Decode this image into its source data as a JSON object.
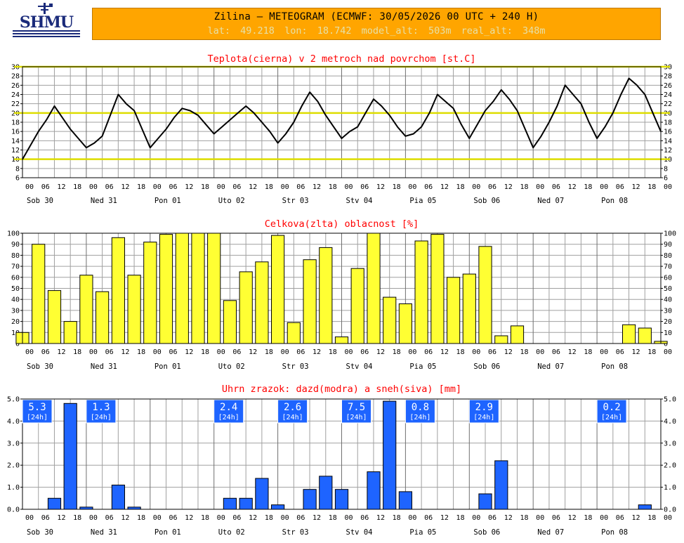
{
  "header": {
    "logo_text": "SHMU",
    "title": "Zilina – METEOGRAM (ECMWF: 30/05/2026 00 UTC + 240 H)",
    "lat": "lat: 49.218",
    "lon": "lon: 18.742",
    "model_alt": "model_alt: 503m",
    "real_alt": "real_alt: 348m"
  },
  "colors": {
    "grid": "#a0a0a0",
    "axis": "#000000",
    "title": "#ff0000",
    "temp_line": "#000000",
    "temp_ref": "#dddd00",
    "cloud_bar": "#ffff33",
    "rain_bar": "#1e64ff",
    "box_fill": "#1e64ff",
    "box_text": "#ffffff"
  },
  "time_axis": {
    "hour_labels": [
      "00",
      "06",
      "12",
      "18",
      "00",
      "06",
      "12",
      "18",
      "00",
      "06",
      "12",
      "18",
      "00",
      "06",
      "12",
      "18",
      "00",
      "06",
      "12",
      "18",
      "00",
      "06",
      "12",
      "18",
      "00",
      "06",
      "12",
      "18",
      "00",
      "06",
      "12",
      "18",
      "00",
      "06",
      "12",
      "18",
      "00",
      "06",
      "12",
      "18",
      "00"
    ],
    "day_labels": [
      "Sob 30",
      "Ned 31",
      "Pon 01",
      "Uto 02",
      "Str 03",
      "Stv 04",
      "Pia 05",
      "Sob 06",
      "Ned 07",
      "Pon 08"
    ]
  },
  "chart_data": [
    {
      "type": "line",
      "title": "Teplota(cierna) v 2 metroch nad povrchom [st.C]",
      "ylim": [
        6,
        30
      ],
      "yticks": [
        "6",
        "8",
        "10",
        "12",
        "14",
        "16",
        "18",
        "20",
        "22",
        "24",
        "26",
        "28",
        "30"
      ],
      "reference_lines": [
        10,
        20,
        30
      ],
      "x_step_hours": 3,
      "series": [
        {
          "values": [
            10,
            13,
            16,
            18.5,
            21.5,
            19,
            16.5,
            14.5,
            12.5,
            13.5,
            15,
            19.5,
            24,
            22,
            20.5,
            16.5,
            12.5,
            14.5,
            16.5,
            19,
            21,
            20.5,
            19.5,
            17.5,
            15.5,
            17,
            18.5,
            20,
            21.5,
            20,
            18,
            16,
            13.5,
            15.5,
            18,
            21.5,
            24.5,
            22.5,
            19.5,
            17,
            14.5,
            16,
            17,
            20,
            23,
            21.5,
            19.5,
            17,
            15,
            15.5,
            17,
            20,
            24,
            22.5,
            21,
            17.5,
            14.5,
            17.5,
            20.5,
            22.5,
            25,
            23,
            20.5,
            16.5,
            12.5,
            15,
            18,
            21.5,
            26,
            24,
            22,
            18,
            14.5,
            17,
            20,
            24,
            27.5,
            26,
            24,
            20,
            16
          ]
        }
      ],
      "grid": true
    },
    {
      "type": "bar",
      "title": "Celkova(zlta) oblacnost [%]",
      "ylim": [
        0,
        100
      ],
      "yticks": [
        "0",
        "10",
        "20",
        "30",
        "40",
        "50",
        "60",
        "70",
        "80",
        "90",
        "100"
      ],
      "x_step_hours": 6,
      "values": [
        10,
        90,
        48,
        20,
        62,
        47,
        96,
        62,
        92,
        99,
        100,
        100,
        100,
        39,
        65,
        74,
        98,
        19,
        76,
        87,
        6,
        68,
        100,
        42,
        36,
        93,
        99,
        60,
        63,
        88,
        7,
        16,
        0,
        0,
        0,
        0,
        0,
        0,
        17,
        14,
        2
      ],
      "grid": true
    },
    {
      "type": "bar",
      "title": "Uhrn zrazok: dazd(modra) a sneh(siva) [mm]",
      "ylim": [
        0,
        5.0
      ],
      "yticks": [
        "0.0",
        "1.0",
        "2.0",
        "3.0",
        "4.0",
        "5.0"
      ],
      "x_step_hours": 6,
      "values": [
        0,
        0,
        0.5,
        4.8,
        0.1,
        0,
        1.1,
        0.1,
        0,
        0,
        0,
        0,
        0,
        0.5,
        0.5,
        1.4,
        0.2,
        0,
        0.9,
        1.5,
        0.9,
        0,
        1.7,
        4.9,
        0.8,
        0,
        0,
        0,
        0,
        0.7,
        2.2,
        0,
        0,
        0,
        0,
        0,
        0,
        0,
        0,
        0.2,
        0
      ],
      "daily_totals": [
        {
          "day": 0,
          "value": "5.3",
          "label": "[24h]"
        },
        {
          "day": 1,
          "value": "1.3",
          "label": "[24h]"
        },
        {
          "day": 3,
          "value": "2.4",
          "label": "[24h]"
        },
        {
          "day": 4,
          "value": "2.6",
          "label": "[24h]"
        },
        {
          "day": 5,
          "value": "7.5",
          "label": "[24h]"
        },
        {
          "day": 6,
          "value": "0.8",
          "label": "[24h]"
        },
        {
          "day": 7,
          "value": "2.9",
          "label": "[24h]"
        },
        {
          "day": 9,
          "value": "0.2",
          "label": "[24h]"
        }
      ],
      "grid": true
    }
  ]
}
